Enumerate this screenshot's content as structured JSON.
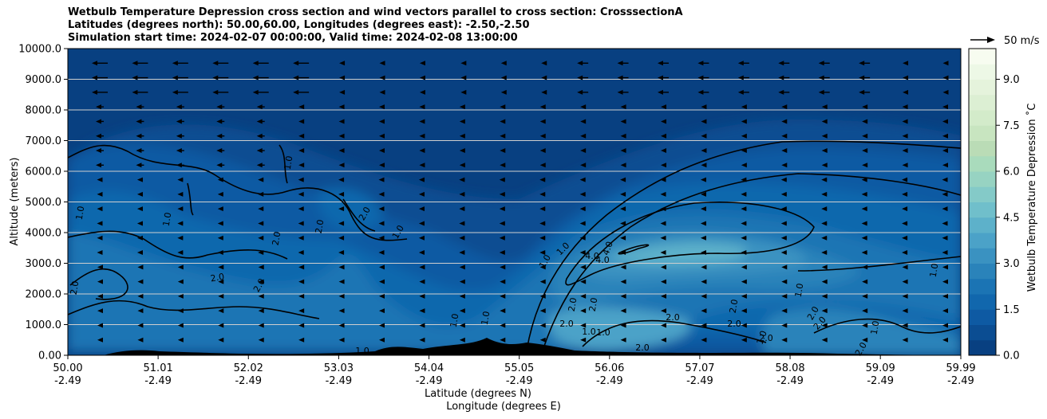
{
  "title_lines": [
    "Wetbulb Temperature Depression cross section and wind vectors parallel to cross section: CrosssectionA",
    "Latitudes (degrees north): 50.00,60.00, Longitudes (degrees east): -2.50,-2.50",
    "Simulation start time: 2024-02-07 00:00:00, Valid time: 2024-02-08 13:00:00"
  ],
  "chart_data": {
    "type": "heatmap",
    "subtype": "filled contour cross section with wind vectors and contour lines",
    "xlabel": "Latitude (degrees N)",
    "xlabel2": "Longitude (degrees E)",
    "ylabel": "Altitude (meters)",
    "x_ticks_lat": [
      "50.00",
      "51.01",
      "52.02",
      "53.03",
      "54.04",
      "55.05",
      "56.06",
      "57.07",
      "58.08",
      "59.09",
      "59.99"
    ],
    "x_ticks_lon": [
      "-2.49",
      "-2.49",
      "-2.49",
      "-2.49",
      "-2.49",
      "-2.49",
      "-2.49",
      "-2.49",
      "-2.49",
      "-2.49",
      "-2.49"
    ],
    "xlim": [
      50.0,
      59.99
    ],
    "y_ticks": [
      "0.00",
      "1000.0",
      "2000.0",
      "3000.0",
      "4000.0",
      "5000.0",
      "6000.0",
      "7000.0",
      "8000.0",
      "9000.0",
      "10000.0"
    ],
    "ylim": [
      0,
      10000
    ],
    "grid": "horizontal",
    "colorbar": {
      "label": "Wetbulb Temperature Depression ˚C",
      "ticks": [
        "0.0",
        "1.5",
        "3.0",
        "4.5",
        "6.0",
        "7.5",
        "9.0"
      ],
      "range": [
        0,
        10
      ],
      "levels": 20,
      "colors": [
        "#084081",
        "#0b4d92",
        "#0e5aa3",
        "#1167ad",
        "#1b74b4",
        "#2a83ba",
        "#3a92c1",
        "#4ba2c8",
        "#5db1ca",
        "#70bfcb",
        "#84cac8",
        "#97d3c2",
        "#a9dbbc",
        "#badcb6",
        "#c8e5c0",
        "#d3ebca",
        "#dcefd3",
        "#e5f3dc",
        "#edf8e6",
        "#f7fcf0"
      ]
    },
    "quiver_key": "50 m/s",
    "contour_labels": [
      "1.0",
      "2.0",
      "4.0"
    ],
    "terrain_color": "#000000"
  }
}
